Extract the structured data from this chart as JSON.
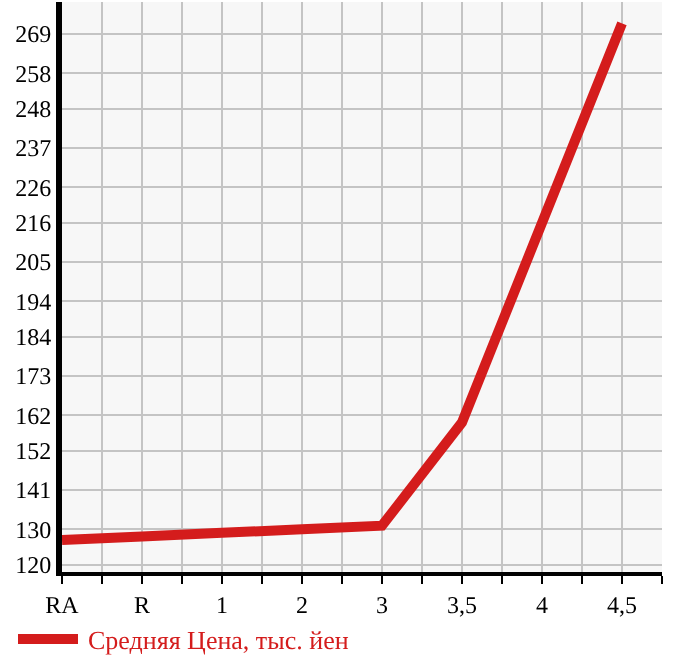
{
  "chart_data": {
    "type": "line",
    "categories": [
      "RA",
      "R",
      "1",
      "2",
      "3",
      "3,5",
      "4",
      "4,5"
    ],
    "series": [
      {
        "name": "Средняя Цена, тыс. йен",
        "color": "#d41c1c",
        "values": [
          127,
          128,
          129,
          130,
          131,
          160,
          216,
          272
        ]
      }
    ],
    "ylim": [
      118,
      278
    ],
    "yticks": [
      120,
      130,
      141,
      152,
      162,
      173,
      184,
      194,
      205,
      216,
      226,
      237,
      248,
      258,
      269
    ],
    "grid": true,
    "legend": "bottom",
    "marker": "none",
    "line_style": "solid"
  }
}
